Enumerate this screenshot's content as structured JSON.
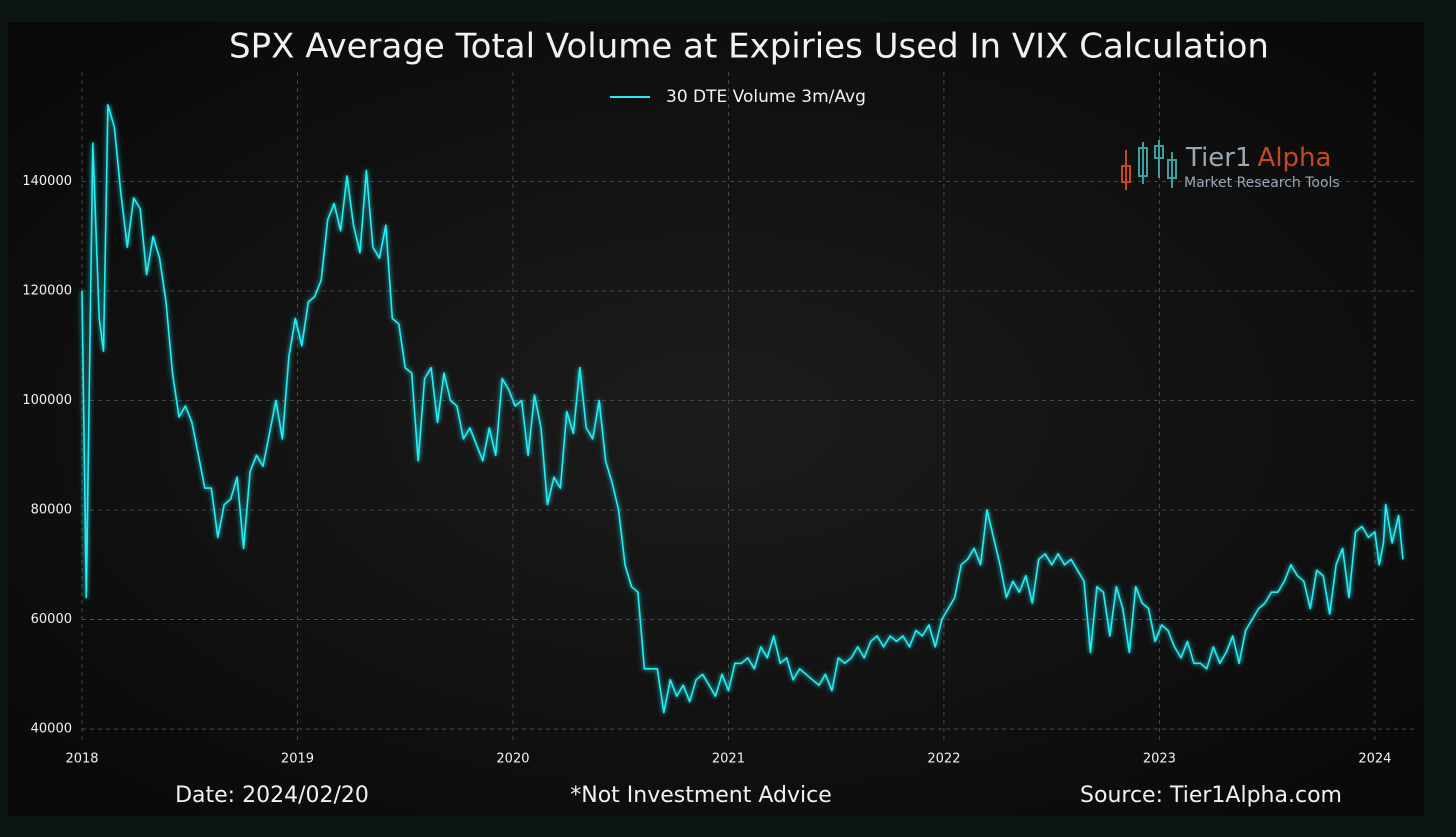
{
  "chart_data": {
    "type": "line",
    "title": "SPX Average Total Volume at Expiries Used In VIX Calculation",
    "x": [
      2018.0,
      2018.02,
      2018.05,
      2018.08,
      2018.1,
      2018.12,
      2018.15,
      2018.18,
      2018.21,
      2018.24,
      2018.27,
      2018.3,
      2018.33,
      2018.36,
      2018.39,
      2018.42,
      2018.45,
      2018.48,
      2018.51,
      2018.54,
      2018.57,
      2018.6,
      2018.63,
      2018.66,
      2018.69,
      2018.72,
      2018.75,
      2018.78,
      2018.81,
      2018.84,
      2018.87,
      2018.9,
      2018.93,
      2018.96,
      2018.99,
      2019.02,
      2019.05,
      2019.08,
      2019.11,
      2019.14,
      2019.17,
      2019.2,
      2019.23,
      2019.26,
      2019.29,
      2019.32,
      2019.35,
      2019.38,
      2019.41,
      2019.44,
      2019.47,
      2019.5,
      2019.53,
      2019.56,
      2019.59,
      2019.62,
      2019.65,
      2019.68,
      2019.71,
      2019.74,
      2019.77,
      2019.8,
      2019.83,
      2019.86,
      2019.89,
      2019.92,
      2019.95,
      2019.98,
      2020.01,
      2020.04,
      2020.07,
      2020.1,
      2020.13,
      2020.16,
      2020.19,
      2020.22,
      2020.25,
      2020.28,
      2020.31,
      2020.34,
      2020.37,
      2020.4,
      2020.43,
      2020.46,
      2020.49,
      2020.52,
      2020.55,
      2020.58,
      2020.61,
      2020.64,
      2020.67,
      2020.7,
      2020.73,
      2020.76,
      2020.79,
      2020.82,
      2020.85,
      2020.88,
      2020.91,
      2020.94,
      2020.97,
      2021.0,
      2021.03,
      2021.06,
      2021.09,
      2021.12,
      2021.15,
      2021.18,
      2021.21,
      2021.24,
      2021.27,
      2021.3,
      2021.33,
      2021.36,
      2021.39,
      2021.42,
      2021.45,
      2021.48,
      2021.51,
      2021.54,
      2021.57,
      2021.6,
      2021.63,
      2021.66,
      2021.69,
      2021.72,
      2021.75,
      2021.78,
      2021.81,
      2021.84,
      2021.87,
      2021.9,
      2021.93,
      2021.96,
      2021.99,
      2022.02,
      2022.05,
      2022.08,
      2022.11,
      2022.14,
      2022.17,
      2022.2,
      2022.23,
      2022.26,
      2022.29,
      2022.32,
      2022.35,
      2022.38,
      2022.41,
      2022.44,
      2022.47,
      2022.5,
      2022.53,
      2022.56,
      2022.59,
      2022.62,
      2022.65,
      2022.68,
      2022.71,
      2022.74,
      2022.77,
      2022.8,
      2022.83,
      2022.86,
      2022.89,
      2022.92,
      2022.95,
      2022.98,
      2023.01,
      2023.04,
      2023.07,
      2023.1,
      2023.13,
      2023.16,
      2023.19,
      2023.22,
      2023.25,
      2023.28,
      2023.31,
      2023.34,
      2023.37,
      2023.4,
      2023.43,
      2023.46,
      2023.49,
      2023.52,
      2023.55,
      2023.58,
      2023.61,
      2023.64,
      2023.67,
      2023.7,
      2023.73,
      2023.76,
      2023.79,
      2023.82,
      2023.85,
      2023.88,
      2023.91,
      2023.94,
      2023.97,
      2024.0,
      2024.02,
      2024.04,
      2024.05,
      2024.08,
      2024.11,
      2024.13
    ],
    "series": [
      {
        "name": "30 DTE Volume 3m/Avg",
        "color": "#22eef5",
        "values": [
          120000,
          64000,
          147000,
          115000,
          109000,
          154000,
          150000,
          138000,
          128000,
          137000,
          135000,
          123000,
          130000,
          126000,
          118000,
          105000,
          97000,
          99000,
          96000,
          90000,
          84000,
          84000,
          75000,
          81000,
          82000,
          86000,
          73000,
          87000,
          90000,
          88000,
          94000,
          100000,
          93000,
          108000,
          115000,
          110000,
          118000,
          119000,
          122000,
          133000,
          136000,
          131000,
          141000,
          132000,
          127000,
          142000,
          128000,
          126000,
          132000,
          115000,
          114000,
          106000,
          105000,
          89000,
          104000,
          106000,
          96000,
          105000,
          100000,
          99000,
          93000,
          95000,
          92000,
          89000,
          95000,
          90000,
          104000,
          102000,
          99000,
          100000,
          90000,
          101000,
          95000,
          81000,
          86000,
          84000,
          98000,
          94000,
          106000,
          95000,
          93000,
          100000,
          89000,
          85000,
          80000,
          70000,
          66000,
          65000,
          51000,
          51000,
          51000,
          43000,
          49000,
          46000,
          48000,
          45000,
          49000,
          50000,
          48000,
          46000,
          50000,
          47000,
          52000,
          52000,
          53000,
          51000,
          55000,
          53000,
          57000,
          52000,
          53000,
          49000,
          51000,
          50000,
          49000,
          48000,
          50000,
          47000,
          53000,
          52000,
          53000,
          55000,
          53000,
          56000,
          57000,
          55000,
          57000,
          56000,
          57000,
          55000,
          58000,
          57000,
          59000,
          55000,
          60000,
          62000,
          64000,
          70000,
          71000,
          73000,
          70000,
          80000,
          75000,
          70000,
          64000,
          67000,
          65000,
          68000,
          63000,
          71000,
          72000,
          70000,
          72000,
          70000,
          71000,
          69000,
          67000,
          54000,
          66000,
          65000,
          57000,
          66000,
          62000,
          54000,
          66000,
          63000,
          62000,
          56000,
          59000,
          58000,
          55000,
          53000,
          56000,
          52000,
          52000,
          51000,
          55000,
          52000,
          54000,
          57000,
          52000,
          58000,
          60000,
          62000,
          63000,
          65000,
          65000,
          67000,
          70000,
          68000,
          67000,
          62000,
          69000,
          68000,
          61000,
          70000,
          73000,
          64000,
          76000,
          77000,
          75000,
          76000,
          70000,
          74000,
          81000,
          74000,
          79000,
          71000
        ]
      }
    ],
    "xlim": [
      2018,
      2024.2
    ],
    "xticks": [
      2018,
      2019,
      2020,
      2021,
      2022,
      2023,
      2024
    ],
    "ylim": [
      38000,
      160000
    ],
    "yticks": [
      40000,
      60000,
      80000,
      100000,
      120000,
      140000
    ],
    "grid": true,
    "legend": "upper center",
    "logo": {
      "name": "Tier1",
      "accent": "Alpha",
      "tagline": "Market  Research Tools"
    },
    "footer": {
      "date": "Date: 2024/02/20",
      "note": "*Not Investment Advice",
      "source": "Source: Tier1Alpha.com"
    }
  }
}
